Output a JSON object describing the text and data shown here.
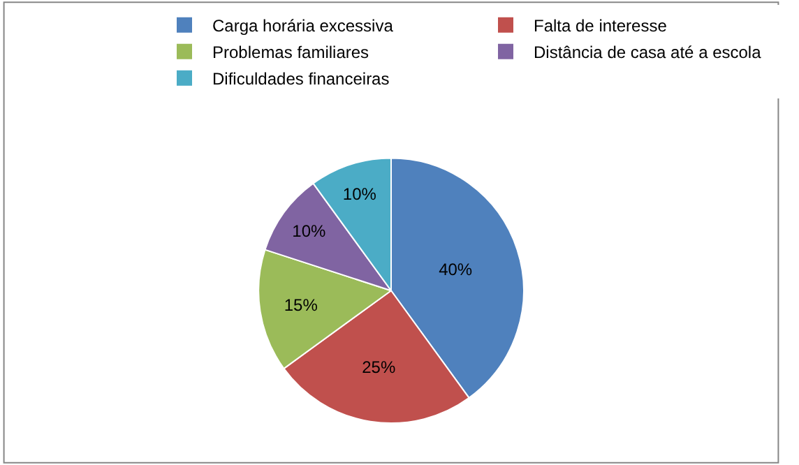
{
  "chart_data": {
    "type": "pie",
    "categories": [
      "Carga horária excessiva",
      "Falta de interesse",
      "Problemas familiares",
      "Distância de casa até a escola",
      "Dificuldades financeiras"
    ],
    "values": [
      40,
      25,
      15,
      10,
      10
    ],
    "colors": [
      "#4f81bd",
      "#c0504d",
      "#9bbb59",
      "#8064a2",
      "#4bacc6"
    ],
    "value_labels": [
      "40%",
      "25%",
      "15%",
      "10%",
      "10%"
    ],
    "legend": "top"
  }
}
